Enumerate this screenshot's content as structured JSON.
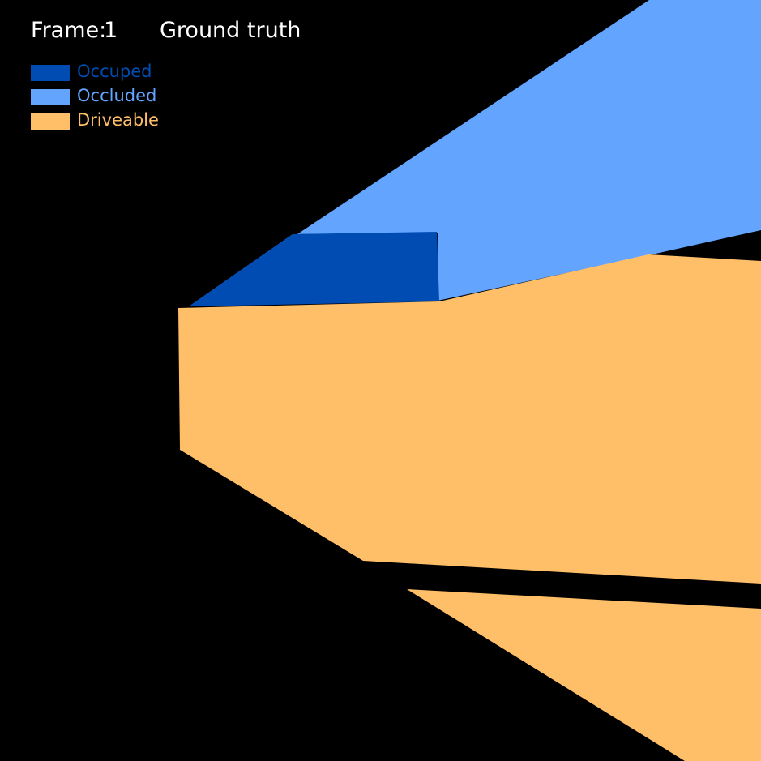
{
  "header": {
    "frame_label": "Frame:",
    "frame_number": "1",
    "view_title": "Ground truth"
  },
  "legend": {
    "items": [
      {
        "label": "Occuped",
        "color": "#004cb3"
      },
      {
        "label": "Occluded",
        "color": "#63a4ff"
      },
      {
        "label": "Driveable",
        "color": "#ffbf69"
      }
    ]
  },
  "colors": {
    "background": "#000000",
    "occupied": "#004cb3",
    "occluded": "#63a4ff",
    "driveable": "#ffbf69",
    "text": "#ffffff"
  }
}
